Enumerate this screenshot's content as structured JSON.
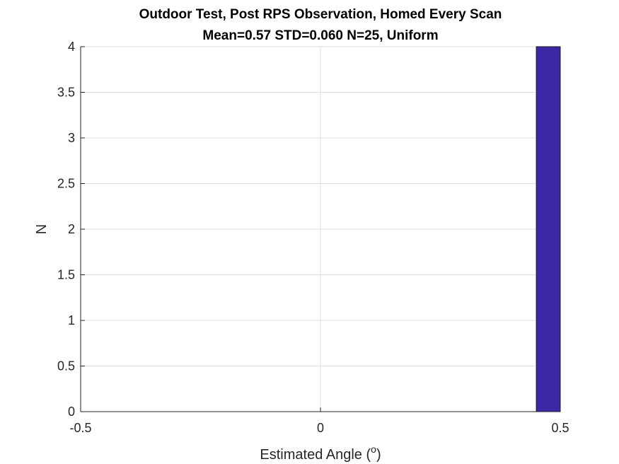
{
  "chart_data": {
    "type": "bar",
    "title": "Outdoor Test, Post RPS Observation, Homed Every Scan",
    "subtitle": "Mean=0.57 STD=0.060 N=25, Uniform",
    "xlabel": "Estimated Angle (",
    "xlabel_superscript": "o",
    "xlabel_suffix": ")",
    "ylabel": "N",
    "xlim": [
      -0.5,
      0.5
    ],
    "ylim": [
      0,
      4
    ],
    "xticks": [
      -0.5,
      0,
      0.5
    ],
    "xtick_labels": [
      "-0.5",
      "0",
      "0.5"
    ],
    "yticks": [
      0,
      0.5,
      1,
      1.5,
      2,
      2.5,
      3,
      3.5,
      4
    ],
    "ytick_labels": [
      "0",
      "0.5",
      "1",
      "1.5",
      "2",
      "2.5",
      "3",
      "3.5",
      "4"
    ],
    "grid": true,
    "bars": [
      {
        "x_start": 0.45,
        "x_end": 0.55,
        "value": 4
      }
    ],
    "bar_color": "#3b28a5",
    "bar_edge_color": "#1a1a1a"
  }
}
